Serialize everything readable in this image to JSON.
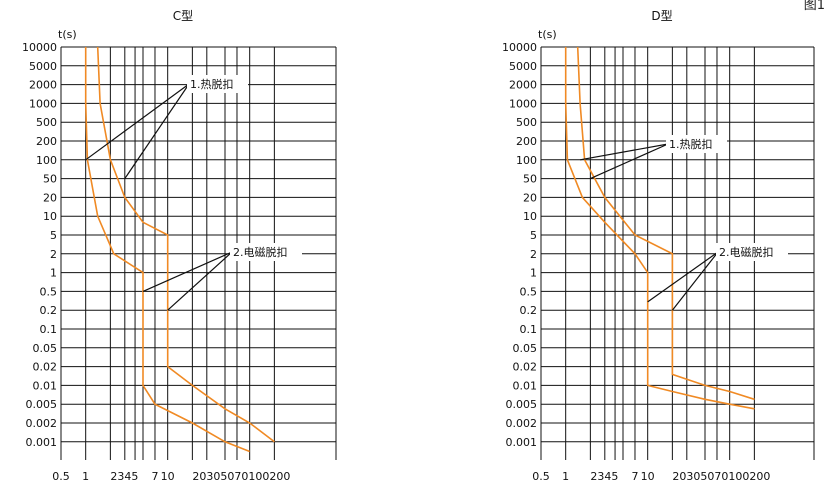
{
  "figure_label": "图1",
  "colors": {
    "curve": "#f08a24",
    "grid": "#111111",
    "callout": "#111111"
  },
  "chart_data": [
    {
      "type": "line",
      "title": "C型",
      "ylabel": "t(s)",
      "xlabel": "",
      "y_ticks": [
        "10000",
        "5000",
        "2000",
        "1000",
        "500",
        "200",
        "100",
        "50",
        "20",
        "10",
        "5",
        "2",
        "1",
        "0.5",
        "0.2",
        "0.1",
        "0.05",
        "0.02",
        "0.01",
        "0.005",
        "0.002",
        "0.001"
      ],
      "x_ticks": [
        "0.5",
        "1",
        "2",
        "3",
        "4",
        "5",
        "7",
        "10",
        "20",
        "30",
        "50",
        "70",
        "100",
        "200"
      ],
      "x_tick_text": [
        {
          "text": "0.5",
          "x": 0.5
        },
        {
          "text": "1",
          "x": 1
        },
        {
          "text": "2345",
          "x": 2
        },
        {
          "text": "7",
          "x": 7
        },
        {
          "text": "10",
          "x": 10
        },
        {
          "text": "20305070100200",
          "x": 20
        }
      ],
      "grid": true,
      "series": [
        {
          "values": [
            [
              1,
              10000
            ],
            [
              1,
              1000
            ],
            [
              1.05,
              100
            ],
            [
              1.4,
              10
            ],
            [
              2.2,
              2
            ],
            [
              5,
              1
            ],
            [
              5,
              0.01
            ],
            [
              7,
              0.005
            ],
            [
              20,
              0.002
            ],
            [
              50,
              0.001
            ],
            [
              100,
              0.0007
            ]
          ]
        },
        {
          "values": [
            [
              1.4,
              10000
            ],
            [
              1.5,
              1000
            ],
            [
              2,
              100
            ],
            [
              3,
              20
            ],
            [
              5,
              8
            ],
            [
              10,
              5
            ],
            [
              10,
              0.02
            ],
            [
              20,
              0.01
            ],
            [
              50,
              0.004
            ],
            [
              100,
              0.002
            ],
            [
              200,
              0.001
            ]
          ]
        }
      ],
      "annotations": [
        {
          "text": "1.热脱扣",
          "targets": [
            [
              1,
              100
            ],
            [
              3,
              50
            ]
          ]
        },
        {
          "text": "2.电磁脱扣",
          "targets": [
            [
              5,
              0.5
            ],
            [
              10,
              0.2
            ]
          ]
        }
      ]
    },
    {
      "type": "line",
      "title": "D型",
      "ylabel": "t(s)",
      "xlabel": "",
      "y_ticks": [
        "10000",
        "5000",
        "2000",
        "1000",
        "500",
        "200",
        "100",
        "50",
        "20",
        "10",
        "5",
        "2",
        "1",
        "0.5",
        "0.2",
        "0.1",
        "0.05",
        "0.02",
        "0.01",
        "0.005",
        "0.002",
        "0.001"
      ],
      "x_ticks": [
        "0.5",
        "1",
        "2",
        "3",
        "4",
        "5",
        "7",
        "10",
        "20",
        "30",
        "50",
        "70",
        "100",
        "200"
      ],
      "x_tick_text": [
        {
          "text": "0.5",
          "x": 0.5
        },
        {
          "text": "1",
          "x": 1
        },
        {
          "text": "2345",
          "x": 2
        },
        {
          "text": "7",
          "x": 7
        },
        {
          "text": "10",
          "x": 10
        },
        {
          "text": "20305070100200",
          "x": 20
        }
      ],
      "grid": true,
      "series": [
        {
          "values": [
            [
              1,
              10000
            ],
            [
              1,
              1000
            ],
            [
              1.05,
              100
            ],
            [
              1.6,
              20
            ],
            [
              3,
              8
            ],
            [
              7,
              2
            ],
            [
              10,
              1
            ],
            [
              10,
              0.01
            ],
            [
              20,
              0.008
            ],
            [
              50,
              0.006
            ],
            [
              100,
              0.005
            ],
            [
              200,
              0.004
            ]
          ]
        },
        {
          "values": [
            [
              1.4,
              10000
            ],
            [
              1.5,
              1000
            ],
            [
              1.7,
              100
            ],
            [
              3,
              20
            ],
            [
              7,
              5
            ],
            [
              20,
              2
            ],
            [
              20,
              0.015
            ],
            [
              50,
              0.01
            ],
            [
              100,
              0.008
            ],
            [
              200,
              0.006
            ]
          ]
        }
      ],
      "annotations": [
        {
          "text": "1.热脱扣",
          "targets": [
            [
              1.5,
              100
            ],
            [
              2,
              50
            ]
          ]
        },
        {
          "text": "2.电磁脱扣",
          "targets": [
            [
              10,
              0.3
            ],
            [
              20,
              0.2
            ]
          ]
        }
      ]
    }
  ]
}
